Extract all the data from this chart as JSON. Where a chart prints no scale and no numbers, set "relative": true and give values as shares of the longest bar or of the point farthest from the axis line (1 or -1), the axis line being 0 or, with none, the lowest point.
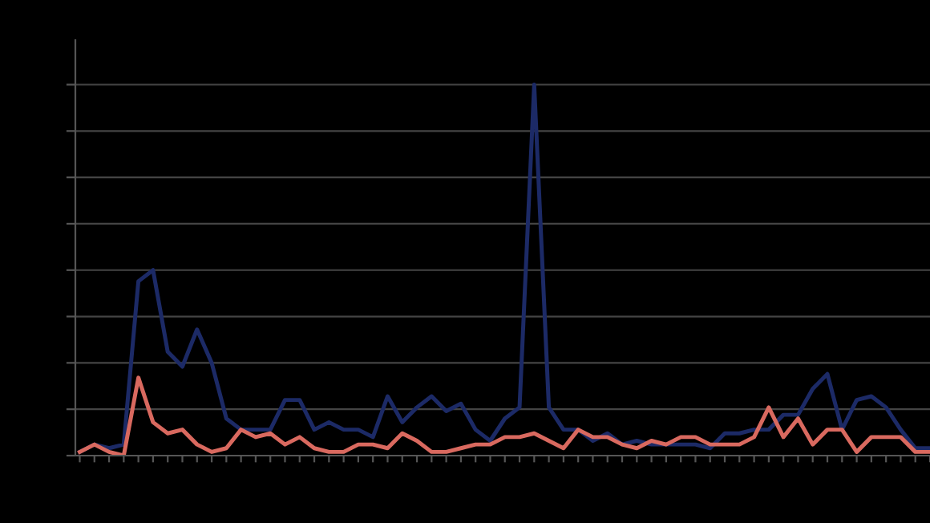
{
  "chart_data": {
    "type": "line",
    "relative": true,
    "grid": "y",
    "line_style": "solid",
    "marker": "none",
    "categories": [
      null,
      null,
      null,
      null,
      null,
      null,
      null,
      null,
      null,
      null,
      null,
      null,
      null,
      null,
      null,
      null,
      null,
      null,
      null,
      null,
      null,
      null,
      null,
      null,
      null,
      null,
      null,
      null,
      null,
      null,
      null,
      null,
      null,
      null,
      null,
      null,
      null,
      null,
      null,
      null,
      null,
      null,
      null,
      null,
      null,
      null,
      null,
      null,
      null,
      null,
      null,
      null,
      null,
      null,
      null,
      null,
      null,
      null,
      null
    ],
    "series": [
      {
        "color": "#1c2a66",
        "values": [
          0.01,
          0.03,
          0.02,
          0.03,
          0.47,
          0.5,
          0.28,
          0.24,
          0.34,
          0.25,
          0.1,
          0.07,
          0.07,
          0.07,
          0.15,
          0.15,
          0.07,
          0.09,
          0.07,
          0.07,
          0.05,
          0.16,
          0.09,
          0.13,
          0.16,
          0.12,
          0.14,
          0.07,
          0.04,
          0.1,
          0.13,
          1,
          0.13,
          0.07,
          0.07,
          0.04,
          0.06,
          0.03,
          0.04,
          0.03,
          0.03,
          0.03,
          0.03,
          0.02,
          0.06,
          0.06,
          0.07,
          0.07,
          0.11,
          0.11,
          0.18,
          0.22,
          0.07,
          0.15,
          0.16,
          0.13,
          0.07,
          0.02,
          0.02
        ]
      },
      {
        "color": "#d9695f",
        "values": [
          0.01,
          0.03,
          0.01,
          0,
          0.21,
          0.09,
          0.06,
          0.07,
          0.03,
          0.01,
          0.02,
          0.07,
          0.05,
          0.06,
          0.03,
          0.05,
          0.02,
          0.01,
          0.01,
          0.03,
          0.03,
          0.02,
          0.06,
          0.04,
          0.01,
          0.01,
          0.02,
          0.03,
          0.03,
          0.05,
          0.05,
          0.06,
          0.04,
          0.02,
          0.07,
          0.05,
          0.05,
          0.03,
          0.02,
          0.04,
          0.03,
          0.05,
          0.05,
          0.03,
          0.03,
          0.03,
          0.05,
          0.13,
          0.05,
          0.1,
          0.03,
          0.07,
          0.07,
          0.01,
          0.05,
          0.05,
          0.05,
          0.01,
          0.01
        ]
      }
    ]
  }
}
